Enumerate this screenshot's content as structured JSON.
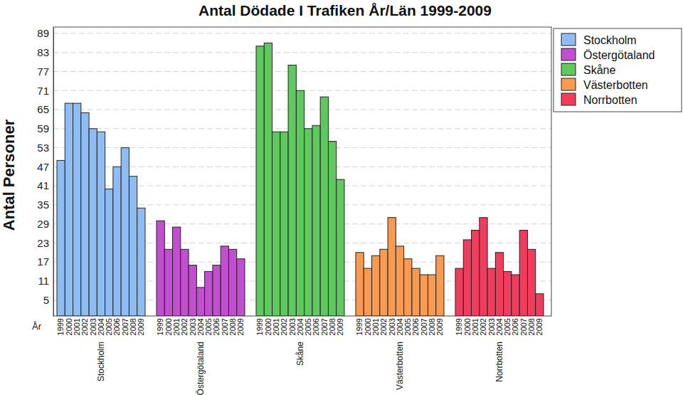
{
  "chart_data": {
    "type": "bar",
    "title": "Antal Dödade I Trafiken År/Län 1999-2009",
    "x_label": "År",
    "y_label": "Antal Personer",
    "categories": [
      "1999",
      "2000",
      "2001",
      "2002",
      "2003",
      "2004",
      "2005",
      "2006",
      "2007",
      "2008",
      "2009"
    ],
    "series": [
      {
        "name": "Stockholm",
        "color": "#8fbcf2",
        "values": [
          49,
          67,
          67,
          64,
          59,
          58,
          40,
          47,
          53,
          44,
          34
        ]
      },
      {
        "name": "Östergötaland",
        "color": "#c24fd0",
        "values": [
          30,
          21,
          28,
          21,
          16,
          9,
          14,
          16,
          22,
          21,
          18
        ]
      },
      {
        "name": "Skåne",
        "color": "#5fc95f",
        "values": [
          85,
          86,
          58,
          58,
          79,
          71,
          59,
          60,
          69,
          55,
          43
        ]
      },
      {
        "name": "Västerbotten",
        "color": "#f89a52",
        "values": [
          20,
          15,
          19,
          21,
          31,
          22,
          18,
          15,
          13,
          13,
          19
        ]
      },
      {
        "name": "Norrbotten",
        "color": "#f23c5e",
        "values": [
          15,
          24,
          27,
          31,
          15,
          20,
          14,
          13,
          27,
          21,
          7
        ]
      }
    ],
    "ylim": [
      0,
      91
    ],
    "yticks": [
      5,
      11,
      17,
      23,
      29,
      35,
      41,
      47,
      53,
      59,
      65,
      71,
      77,
      83,
      89
    ],
    "grid": true,
    "legend": "upper right"
  }
}
